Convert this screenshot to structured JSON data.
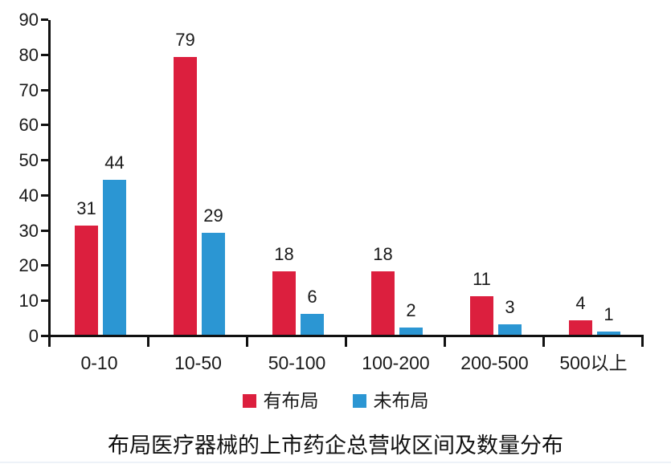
{
  "chart_data": {
    "type": "bar",
    "title": "布局医疗器械的上市药企总营收区间及数量分布",
    "categories": [
      "0-10",
      "10-50",
      "50-100",
      "100-200",
      "200-500",
      "500以上"
    ],
    "series": [
      {
        "name": "有布局",
        "color": "#dc1f3e",
        "values": [
          31,
          79,
          18,
          18,
          11,
          4
        ]
      },
      {
        "name": "未布局",
        "color": "#2b96d3",
        "values": [
          44,
          29,
          6,
          2,
          3,
          1
        ]
      }
    ],
    "ylim": [
      0,
      90
    ],
    "ytick_step": 10,
    "ytick_labels": [
      "0",
      "10",
      "20",
      "30",
      "40",
      "50",
      "60",
      "70",
      "80",
      "90"
    ],
    "xlabel": "",
    "ylabel": "",
    "grid": false,
    "legend_position": "bottom",
    "value_labels": true,
    "axis_color": "#111111",
    "text_color": "#1a1a1a",
    "background_color": "#ffffff"
  }
}
